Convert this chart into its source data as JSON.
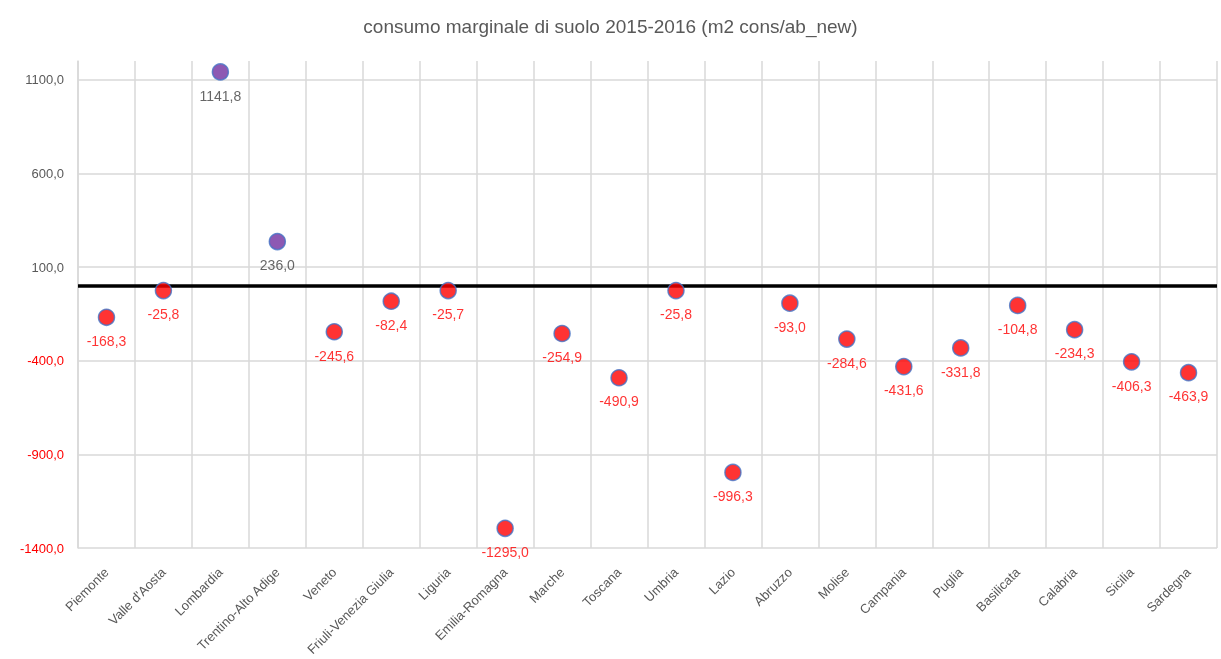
{
  "chart_data": {
    "type": "scatter",
    "title": "consumo marginale di suolo 2015-2016 (m2 cons/ab_new)",
    "categories": [
      "Piemonte",
      "Valle d'Aosta",
      "Lombardia",
      "Trentino-Alto Adige",
      "Veneto",
      "Friuli-Venezia Giulia",
      "Liguria",
      "Emilia-Romagna",
      "Marche",
      "Toscana",
      "Umbria",
      "Lazio",
      "Abruzzo",
      "Molise",
      "Campania",
      "Puglia",
      "Basilicata",
      "Calabria",
      "Sicilia",
      "Sardegna"
    ],
    "values": [
      -168.3,
      -25.8,
      1141.8,
      236.0,
      -245.6,
      -82.4,
      -25.7,
      -1295.0,
      -254.9,
      -490.9,
      -25.8,
      -996.3,
      -93.0,
      -284.6,
      -431.6,
      -331.8,
      -104.8,
      -234.3,
      -406.3,
      -463.9
    ],
    "value_labels": [
      "-168,3",
      "-25,8",
      "1141,8",
      "236,0",
      "-245,6",
      "-82,4",
      "-25,7",
      "-1295,0",
      "-254,9",
      "-490,9",
      "-25,8",
      "-996,3",
      "-93,0",
      "-284,6",
      "-431,6",
      "-331,8",
      "-104,8",
      "-234,3",
      "-406,3",
      "-463,9"
    ],
    "colors": [
      "#ff0000",
      "#ff0000",
      "#7030a0",
      "#7030a0",
      "#ff0000",
      "#ff0000",
      "#ff0000",
      "#ff0000",
      "#ff0000",
      "#ff0000",
      "#ff0000",
      "#ff0000",
      "#ff0000",
      "#ff0000",
      "#ff0000",
      "#ff0000",
      "#ff0000",
      "#ff0000",
      "#ff0000",
      "#ff0000"
    ],
    "ylim": [
      -1400,
      1200
    ],
    "yticks": [
      {
        "value": -1400,
        "label": "-1400,0"
      },
      {
        "value": -900,
        "label": "-900,0"
      },
      {
        "value": -400,
        "label": "-400,0"
      },
      {
        "value": 100,
        "label": "100,0"
      },
      {
        "value": 600,
        "label": "600,0"
      },
      {
        "value": 1100,
        "label": "1100,0"
      }
    ],
    "ref_lines": [
      {
        "axis": "y",
        "value": 0,
        "color": "#000000",
        "line_style": "solid"
      }
    ],
    "grid": true,
    "marker": "circle"
  }
}
